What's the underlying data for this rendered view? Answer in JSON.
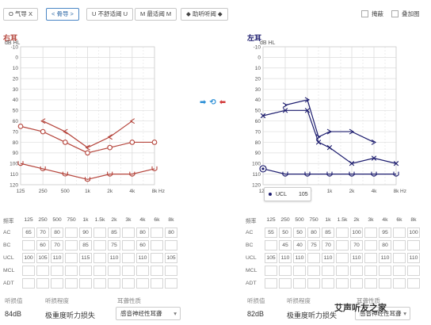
{
  "legend": [
    {
      "label": "O 气导 X",
      "active": false
    },
    {
      "label": "< 骨导 >",
      "active": true
    },
    {
      "label": "U 不舒适阈 U",
      "active": false
    },
    {
      "label": "M 最适阈 M",
      "active": false
    },
    {
      "label": "◆ 助听听阈 ◆",
      "active": false
    }
  ],
  "options": {
    "mask": "掩蔽",
    "overlay": "叠加图"
  },
  "icons": {
    "copy_left": "➡",
    "swap": "⟲",
    "copy_right": "⬅"
  },
  "right_ear": {
    "title": "右耳"
  },
  "left_ear": {
    "title": "左耳"
  },
  "tooltip": {
    "label": "UCL",
    "value": "105"
  },
  "table": {
    "headers": [
      "频率",
      "125",
      "250",
      "500",
      "750",
      "1k",
      "1.5k",
      "2k",
      "3k",
      "4k",
      "6k",
      "8k"
    ],
    "row_labels": [
      "AC",
      "BC",
      "UCL",
      "MCL",
      "ADT"
    ],
    "right": [
      [
        "65",
        "70",
        "80",
        "",
        "90",
        "",
        "85",
        "",
        "80",
        "",
        "80"
      ],
      [
        "",
        "60",
        "70",
        "",
        "85",
        "",
        "75",
        "",
        "60",
        "",
        ""
      ],
      [
        "100",
        "105",
        "110",
        "",
        "115",
        "",
        "110",
        "",
        "110",
        "",
        "105"
      ],
      [
        "",
        "",
        "",
        "",
        "",
        "",
        "",
        "",
        "",
        "",
        ""
      ],
      [
        "",
        "",
        "",
        "",
        "",
        "",
        "",
        "",
        "",
        "",
        ""
      ]
    ],
    "left": [
      [
        "55",
        "50",
        "50",
        "80",
        "85",
        "",
        "100",
        "",
        "95",
        "",
        "100"
      ],
      [
        "",
        "45",
        "40",
        "75",
        "70",
        "",
        "70",
        "",
        "80",
        "",
        ""
      ],
      [
        "105",
        "110",
        "110",
        "",
        "110",
        "",
        "110",
        "",
        "110",
        "",
        "110"
      ],
      [
        "",
        "",
        "",
        "",
        "",
        "",
        "",
        "",
        "",
        "",
        ""
      ],
      [
        "",
        "",
        "",
        "",
        "",
        "",
        "",
        "",
        "",
        "",
        ""
      ]
    ]
  },
  "summary": {
    "pta_label": "听损值",
    "degree_label": "听损程度",
    "nature_label": "耳聋性质",
    "right": {
      "pta": "84dB",
      "degree": "极重度听力损失",
      "nature": "感音神经性耳聋"
    },
    "left": {
      "pta": "82dB",
      "degree": "极重度听力损失",
      "nature": "感音神经性耳聋"
    }
  },
  "watermark": "艾声听友之家",
  "colors": {
    "right": "#b5453c",
    "left": "#1c1c6e",
    "grid": "#dcdcdc",
    "accent": "#4a86c5"
  },
  "chart_data": [
    {
      "type": "line",
      "title": "右耳",
      "ylabel": "dB HL",
      "ylim": [
        -10,
        120
      ],
      "y_ticks": [
        -10,
        0,
        10,
        20,
        30,
        40,
        50,
        60,
        70,
        80,
        90,
        100,
        110,
        120
      ],
      "x_ticks": [
        "125",
        "250",
        "500",
        "1k",
        "2k",
        "4k",
        "8k"
      ],
      "x_unit": "Hz",
      "series": [
        {
          "name": "AC",
          "marker": "O",
          "points": [
            [
              "125",
              65
            ],
            [
              "250",
              70
            ],
            [
              "500",
              80
            ],
            [
              "1k",
              90
            ],
            [
              "2k",
              85
            ],
            [
              "4k",
              80
            ],
            [
              "8k",
              80
            ]
          ]
        },
        {
          "name": "BC",
          "marker": "<",
          "points": [
            [
              "250",
              60
            ],
            [
              "500",
              70
            ],
            [
              "1k",
              85
            ],
            [
              "2k",
              75
            ],
            [
              "4k",
              60
            ]
          ]
        },
        {
          "name": "UCL",
          "marker": "U",
          "points": [
            [
              "125",
              100
            ],
            [
              "250",
              105
            ],
            [
              "500",
              110
            ],
            [
              "1k",
              115
            ],
            [
              "2k",
              110
            ],
            [
              "4k",
              110
            ],
            [
              "8k",
              105
            ]
          ]
        }
      ]
    },
    {
      "type": "line",
      "title": "左耳",
      "ylabel": "dB HL",
      "ylim": [
        -10,
        120
      ],
      "y_ticks": [
        -10,
        0,
        10,
        20,
        30,
        40,
        50,
        60,
        70,
        80,
        90,
        100,
        110,
        120
      ],
      "x_ticks": [
        "125",
        "250",
        "500",
        "1k",
        "2k",
        "4k",
        "8k"
      ],
      "x_unit": "Hz",
      "series": [
        {
          "name": "AC",
          "marker": "X",
          "points": [
            [
              "125",
              55
            ],
            [
              "250",
              50
            ],
            [
              "500",
              50
            ],
            [
              "750",
              80
            ],
            [
              "1k",
              85
            ],
            [
              "2k",
              100
            ],
            [
              "4k",
              95
            ],
            [
              "8k",
              100
            ]
          ]
        },
        {
          "name": "BC",
          "marker": ">",
          "points": [
            [
              "250",
              45
            ],
            [
              "500",
              40
            ],
            [
              "750",
              75
            ],
            [
              "1k",
              70
            ],
            [
              "2k",
              70
            ],
            [
              "4k",
              80
            ]
          ]
        },
        {
          "name": "UCL",
          "marker": "U",
          "points": [
            [
              "125",
              105
            ],
            [
              "250",
              110
            ],
            [
              "500",
              110
            ],
            [
              "1k",
              110
            ],
            [
              "2k",
              110
            ],
            [
              "4k",
              110
            ],
            [
              "8k",
              110
            ]
          ]
        }
      ]
    }
  ]
}
